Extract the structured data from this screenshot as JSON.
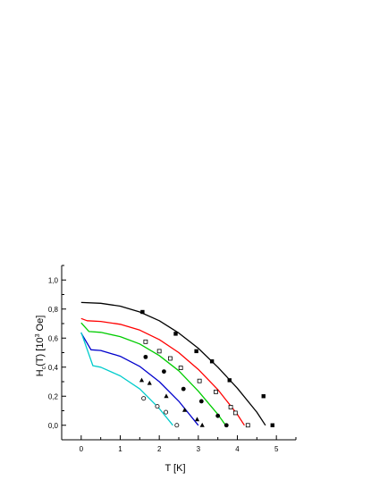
{
  "chart_data": {
    "type": "scatter",
    "xlabel": "T [K]",
    "ylabel_parts": {
      "main": "H",
      "sub": "c",
      "mid": "(T) [10",
      "sup": "3",
      "end": " Oe]"
    },
    "xlim": [
      -0.5,
      5.5
    ],
    "ylim": [
      -0.1,
      1.1
    ],
    "x_ticks": [
      0,
      1,
      2,
      3,
      4,
      5
    ],
    "x_tick_labels": [
      "0",
      "1",
      "2",
      "3",
      "4",
      "5"
    ],
    "y_ticks": [
      0.0,
      0.2,
      0.4,
      0.6,
      0.8,
      1.0
    ],
    "y_tick_labels": [
      "0,0",
      "0,2",
      "0,4",
      "0,6",
      "0,8",
      "1,0"
    ],
    "grid": false,
    "series": [
      {
        "color": "#000000",
        "marker": "filled-square",
        "points": [
          [
            1.57,
            0.78
          ],
          [
            2.42,
            0.63
          ],
          [
            2.95,
            0.51
          ],
          [
            3.35,
            0.44
          ],
          [
            3.8,
            0.31
          ],
          [
            4.67,
            0.2
          ],
          [
            4.9,
            0.0
          ]
        ],
        "curve": [
          [
            0.0,
            0.845
          ],
          [
            0.5,
            0.84
          ],
          [
            1.0,
            0.82
          ],
          [
            1.5,
            0.78
          ],
          [
            2.0,
            0.72
          ],
          [
            2.5,
            0.635
          ],
          [
            3.0,
            0.53
          ],
          [
            3.5,
            0.4
          ],
          [
            4.0,
            0.255
          ],
          [
            4.5,
            0.09
          ],
          [
            4.72,
            0.0
          ]
        ]
      },
      {
        "color": "#ff0000",
        "marker": "open-square",
        "points": [
          [
            1.65,
            0.575
          ],
          [
            2.0,
            0.51
          ],
          [
            2.28,
            0.46
          ],
          [
            2.55,
            0.395
          ],
          [
            3.03,
            0.305
          ],
          [
            3.45,
            0.23
          ],
          [
            3.83,
            0.125
          ],
          [
            3.95,
            0.085
          ],
          [
            4.27,
            0.0
          ]
        ],
        "curve": [
          [
            0.0,
            0.735
          ],
          [
            0.15,
            0.72
          ],
          [
            0.5,
            0.715
          ],
          [
            1.0,
            0.695
          ],
          [
            1.5,
            0.655
          ],
          [
            2.0,
            0.59
          ],
          [
            2.5,
            0.5
          ],
          [
            3.0,
            0.385
          ],
          [
            3.5,
            0.245
          ],
          [
            4.0,
            0.075
          ],
          [
            4.18,
            0.0
          ]
        ]
      },
      {
        "color": "#00cc00",
        "marker": "filled-circle",
        "points": [
          [
            1.65,
            0.47
          ],
          [
            2.12,
            0.37
          ],
          [
            2.62,
            0.25
          ],
          [
            3.08,
            0.165
          ],
          [
            3.5,
            0.065
          ],
          [
            3.72,
            0.0
          ]
        ],
        "curve": [
          [
            0.0,
            0.705
          ],
          [
            0.2,
            0.645
          ],
          [
            0.5,
            0.64
          ],
          [
            1.0,
            0.61
          ],
          [
            1.5,
            0.56
          ],
          [
            2.0,
            0.48
          ],
          [
            2.5,
            0.375
          ],
          [
            3.0,
            0.235
          ],
          [
            3.5,
            0.075
          ],
          [
            3.7,
            0.0
          ]
        ]
      },
      {
        "color": "#0000cc",
        "marker": "filled-triangle",
        "points": [
          [
            1.55,
            0.31
          ],
          [
            1.75,
            0.29
          ],
          [
            2.18,
            0.2
          ],
          [
            2.65,
            0.105
          ],
          [
            2.97,
            0.04
          ],
          [
            3.1,
            0.0
          ]
        ],
        "curve": [
          [
            0.0,
            0.635
          ],
          [
            0.25,
            0.52
          ],
          [
            0.5,
            0.515
          ],
          [
            1.0,
            0.475
          ],
          [
            1.5,
            0.405
          ],
          [
            2.0,
            0.3
          ],
          [
            2.5,
            0.165
          ],
          [
            3.0,
            0.0
          ]
        ]
      },
      {
        "color": "#00cccc",
        "marker": "open-circle",
        "points": [
          [
            1.6,
            0.185
          ],
          [
            1.95,
            0.13
          ],
          [
            2.17,
            0.09
          ],
          [
            2.45,
            0.0
          ]
        ],
        "curve": [
          [
            0.0,
            0.64
          ],
          [
            0.3,
            0.41
          ],
          [
            0.5,
            0.4
          ],
          [
            1.0,
            0.34
          ],
          [
            1.5,
            0.25
          ],
          [
            2.0,
            0.115
          ],
          [
            2.35,
            0.0
          ]
        ]
      }
    ]
  }
}
